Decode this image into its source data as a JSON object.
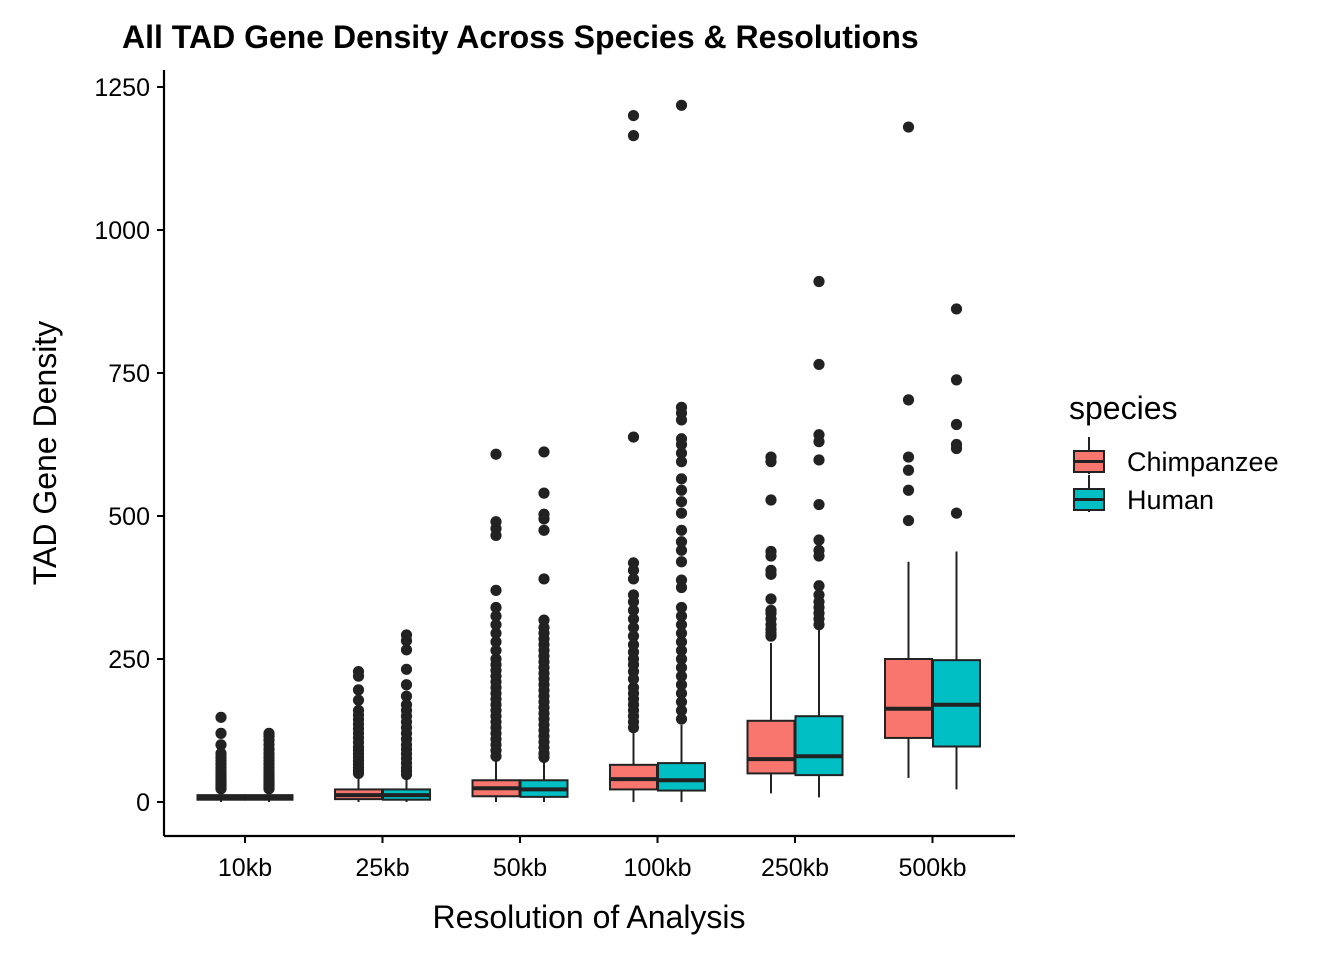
{
  "chart_data": {
    "type": "boxplot",
    "title": "All TAD Gene Density Across Species & Resolutions",
    "xlabel": "Resolution of Analysis",
    "ylabel": "TAD Gene Density",
    "ylim": [
      -60,
      1280
    ],
    "yticks": [
      0,
      250,
      500,
      750,
      1000,
      1250
    ],
    "categories": [
      "10kb",
      "25kb",
      "50kb",
      "100kb",
      "250kb",
      "500kb"
    ],
    "grid": false,
    "legend": {
      "title": "species",
      "position": "right"
    },
    "series": [
      {
        "name": "Chimpanzee",
        "color": "#F8766D",
        "boxes": [
          {
            "min": 0,
            "q1": 4,
            "median": 7,
            "q3": 12,
            "max": 20,
            "outliers": [
              148,
              120,
              100,
              85,
              78,
              72,
              66,
              60,
              55,
              50,
              46,
              42,
              38,
              35,
              32,
              29,
              26,
              23
            ]
          },
          {
            "min": 0,
            "q1": 5,
            "median": 12,
            "q3": 22,
            "max": 45,
            "outliers": [
              228,
              220,
              196,
              178,
              160,
              152,
              144,
              136,
              128,
              120,
              112,
              104,
              96,
              90,
              84,
              78,
              72,
              66,
              60,
              55,
              50
            ]
          },
          {
            "min": 0,
            "q1": 10,
            "median": 24,
            "q3": 38,
            "max": 75,
            "outliers": [
              608,
              490,
              478,
              466,
              370,
              340,
              325,
              310,
              295,
              280,
              265,
              250,
              240,
              230,
              220,
              210,
              200,
              190,
              180,
              170,
              160,
              150,
              140,
              130,
              120,
              110,
              100,
              90,
              80
            ]
          },
          {
            "min": 0,
            "q1": 22,
            "median": 40,
            "q3": 65,
            "max": 125,
            "outliers": [
              1200,
              1165,
              638,
              418,
              405,
              390,
              362,
              350,
              335,
              320,
              305,
              290,
              275,
              262,
              250,
              240,
              228,
              215,
              200,
              190,
              180,
              170,
              160,
              150,
              140,
              130
            ]
          },
          {
            "min": 15,
            "q1": 50,
            "median": 75,
            "q3": 142,
            "max": 278,
            "outliers": [
              603,
              595,
              528,
              438,
              430,
              405,
              398,
              355,
              335,
              330,
              320,
              310,
              302,
              295,
              290
            ]
          },
          {
            "min": 42,
            "q1": 112,
            "median": 163,
            "q3": 250,
            "max": 420,
            "outliers": [
              1180,
              703,
              603,
              580,
              545,
              492
            ]
          }
        ]
      },
      {
        "name": "Human",
        "color": "#00BFC4",
        "boxes": [
          {
            "min": 0,
            "q1": 4,
            "median": 7,
            "q3": 12,
            "max": 20,
            "outliers": [
              120,
              115,
              108,
              100,
              92,
              85,
              78,
              72,
              66,
              60,
              55,
              50,
              46,
              42,
              38,
              35,
              32,
              29,
              26,
              23
            ]
          },
          {
            "min": 0,
            "q1": 4,
            "median": 12,
            "q3": 22,
            "max": 45,
            "outliers": [
              292,
              282,
              266,
              232,
              205,
              185,
              170,
              160,
              150,
              140,
              130,
              120,
              110,
              100,
              92,
              84,
              76,
              68,
              60,
              54,
              48
            ]
          },
          {
            "min": 0,
            "q1": 9,
            "median": 22,
            "q3": 38,
            "max": 75,
            "outliers": [
              612,
              540,
              503,
              495,
              475,
              390,
              318,
              305,
              295,
              285,
              275,
              265,
              255,
              245,
              235,
              225,
              215,
              205,
              195,
              185,
              175,
              165,
              155,
              145,
              135,
              125,
              115,
              105,
              95,
              85,
              78
            ]
          },
          {
            "min": 0,
            "q1": 20,
            "median": 38,
            "q3": 68,
            "max": 135,
            "outliers": [
              1218,
              690,
              680,
              668,
              635,
              625,
              610,
              595,
              565,
              545,
              525,
              505,
              475,
              455,
              440,
              420,
              388,
              375,
              340,
              325,
              310,
              295,
              280,
              265,
              250,
              235,
              220,
              205,
              190,
              175,
              160,
              145
            ]
          },
          {
            "min": 8,
            "q1": 47,
            "median": 80,
            "q3": 150,
            "max": 303,
            "outliers": [
              910,
              765,
              642,
              630,
              598,
              520,
              458,
              440,
              430,
              378,
              362,
              350,
              340,
              330,
              320,
              310
            ]
          },
          {
            "min": 22,
            "q1": 97,
            "median": 170,
            "q3": 248,
            "max": 438,
            "outliers": [
              862,
              738,
              660,
              625,
              618,
              505
            ]
          }
        ]
      }
    ]
  }
}
